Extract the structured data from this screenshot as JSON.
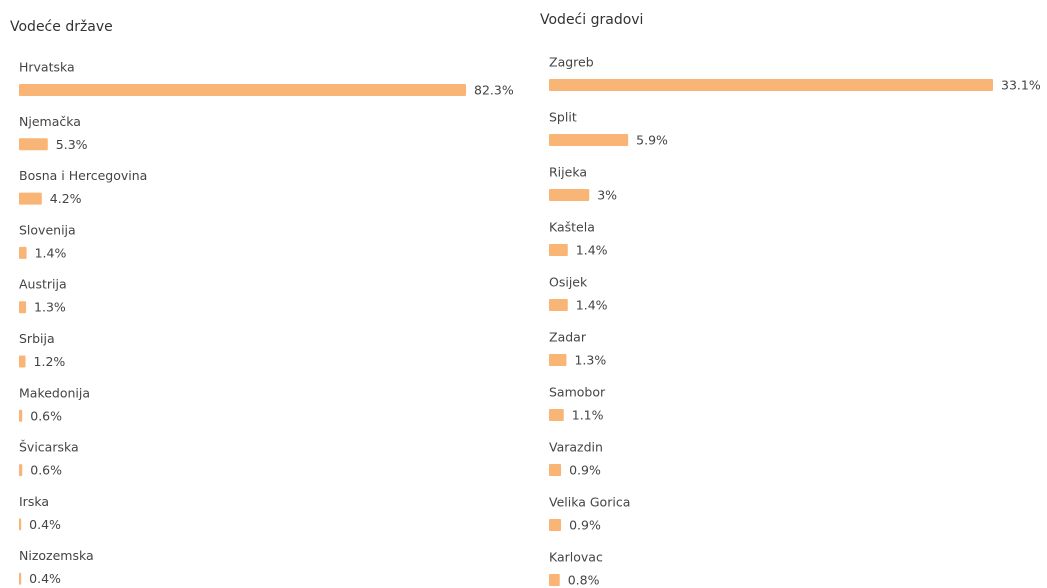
{
  "chart_data": [
    {
      "type": "bar",
      "title": "Vodeće države",
      "categories": [
        "Hrvatska",
        "Njemačka",
        "Bosna i Hercegovina",
        "Slovenija",
        "Austrija",
        "Srbija",
        "Makedonija",
        "Švicarska",
        "Irska",
        "Nizozemska"
      ],
      "values": [
        82.3,
        5.3,
        4.2,
        1.4,
        1.3,
        1.2,
        0.6,
        0.6,
        0.4,
        0.4
      ],
      "value_labels": [
        "82.3%",
        "5.3%",
        "4.2%",
        "1.4%",
        "1.3%",
        "1.2%",
        "0.6%",
        "0.6%",
        "0.4%",
        "0.4%"
      ],
      "color": "#f9b576"
    },
    {
      "type": "bar",
      "title": "Vodeći gradovi",
      "categories": [
        "Zagreb",
        "Split",
        "Rijeka",
        "Kaštela",
        "Osijek",
        "Zadar",
        "Samobor",
        "Varazdin",
        "Velika Gorica",
        "Karlovac"
      ],
      "values": [
        33.1,
        5.9,
        3,
        1.4,
        1.4,
        1.3,
        1.1,
        0.9,
        0.9,
        0.8
      ],
      "value_labels": [
        "33.1%",
        "5.9%",
        "3%",
        "1.4%",
        "1.4%",
        "1.3%",
        "1.1%",
        "0.9%",
        "0.9%",
        "0.8%"
      ],
      "color": "#f9b576"
    }
  ]
}
